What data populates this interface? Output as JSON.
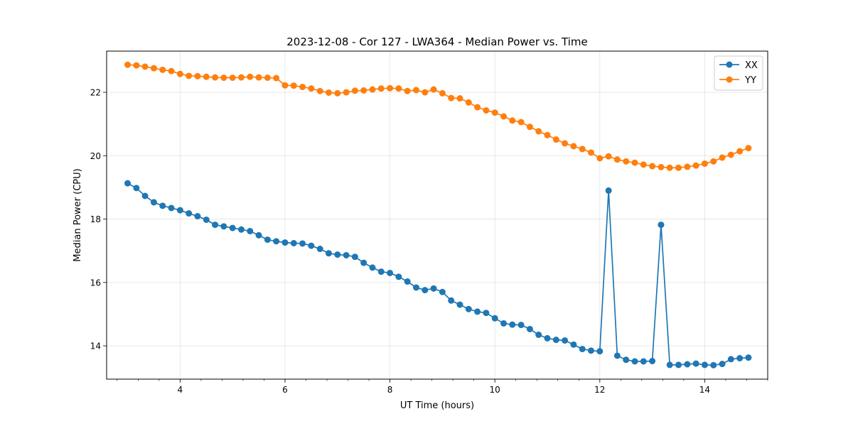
{
  "chart_data": {
    "type": "line",
    "title": "2023-12-08 - Cor 127 - LWA364 - Median Power vs. Time",
    "xlabel": "UT Time (hours)",
    "ylabel": "Median Power (CPU)",
    "xlim": [
      2.6,
      15.2
    ],
    "ylim": [
      12.95,
      23.3
    ],
    "xticks": [
      4,
      6,
      8,
      10,
      12,
      14
    ],
    "yticks": [
      14,
      16,
      18,
      20,
      22
    ],
    "x_minor_step": 0.4,
    "grid": true,
    "legend_position": "top-right",
    "x": [
      3.0,
      3.167,
      3.333,
      3.5,
      3.667,
      3.833,
      4.0,
      4.167,
      4.333,
      4.5,
      4.667,
      4.833,
      5.0,
      5.167,
      5.333,
      5.5,
      5.667,
      5.833,
      6.0,
      6.167,
      6.333,
      6.5,
      6.667,
      6.833,
      7.0,
      7.167,
      7.333,
      7.5,
      7.667,
      7.833,
      8.0,
      8.167,
      8.333,
      8.5,
      8.667,
      8.833,
      9.0,
      9.167,
      9.333,
      9.5,
      9.667,
      9.833,
      10.0,
      10.167,
      10.333,
      10.5,
      10.667,
      10.833,
      11.0,
      11.167,
      11.333,
      11.5,
      11.667,
      11.833,
      12.0,
      12.167,
      12.333,
      12.5,
      12.667,
      12.833,
      13.0,
      13.167,
      13.333,
      13.5,
      13.667,
      13.833,
      14.0,
      14.167,
      14.333,
      14.5,
      14.667,
      14.833
    ],
    "series": [
      {
        "name": "XX",
        "color": "#1f77b4",
        "values": [
          19.13,
          18.98,
          18.73,
          18.53,
          18.42,
          18.35,
          18.28,
          18.18,
          18.09,
          17.98,
          17.82,
          17.77,
          17.72,
          17.67,
          17.62,
          17.49,
          17.35,
          17.3,
          17.26,
          17.24,
          17.23,
          17.16,
          17.06,
          16.92,
          16.88,
          16.86,
          16.81,
          16.62,
          16.47,
          16.34,
          16.3,
          16.18,
          16.03,
          15.84,
          15.76,
          15.81,
          15.7,
          15.43,
          15.3,
          15.16,
          15.08,
          15.04,
          14.87,
          14.71,
          14.67,
          14.66,
          14.53,
          14.35,
          14.24,
          14.19,
          14.17,
          14.04,
          13.9,
          13.85,
          13.83,
          18.9,
          13.69,
          13.56,
          13.51,
          13.51,
          13.52,
          17.82,
          13.4,
          13.4,
          13.42,
          13.44,
          13.4,
          13.39,
          13.43,
          13.58,
          13.61,
          13.63
        ]
      },
      {
        "name": "YY",
        "color": "#ff7f0e",
        "values": [
          22.87,
          22.85,
          22.81,
          22.76,
          22.71,
          22.67,
          22.58,
          22.52,
          22.51,
          22.49,
          22.47,
          22.46,
          22.46,
          22.47,
          22.49,
          22.47,
          22.46,
          22.45,
          22.22,
          22.21,
          22.17,
          22.12,
          22.04,
          21.99,
          21.97,
          22.0,
          22.05,
          22.06,
          22.09,
          22.12,
          22.13,
          22.12,
          22.04,
          22.07,
          22.0,
          22.09,
          21.97,
          21.82,
          21.81,
          21.68,
          21.53,
          21.43,
          21.36,
          21.24,
          21.11,
          21.06,
          20.91,
          20.77,
          20.65,
          20.51,
          20.39,
          20.3,
          20.21,
          20.1,
          19.92,
          19.98,
          19.88,
          19.82,
          19.78,
          19.72,
          19.67,
          19.64,
          19.62,
          19.62,
          19.65,
          19.69,
          19.75,
          19.82,
          19.94,
          20.03,
          20.14,
          20.24
        ]
      }
    ]
  }
}
